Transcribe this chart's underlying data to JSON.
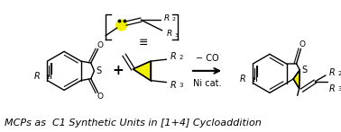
{
  "background_color": "#ffffff",
  "caption": "MCPs as  C1 Synthetic Units in [1+4] Cycloaddition",
  "caption_fontsize": 8.0,
  "caption_style": "italic",
  "arrow_label_top": "Ni cat.",
  "arrow_label_bottom": "− CO",
  "highlight_color": "#f0f000",
  "structure_color": "#000000",
  "figsize": [
    3.78,
    1.47
  ],
  "dpi": 100
}
